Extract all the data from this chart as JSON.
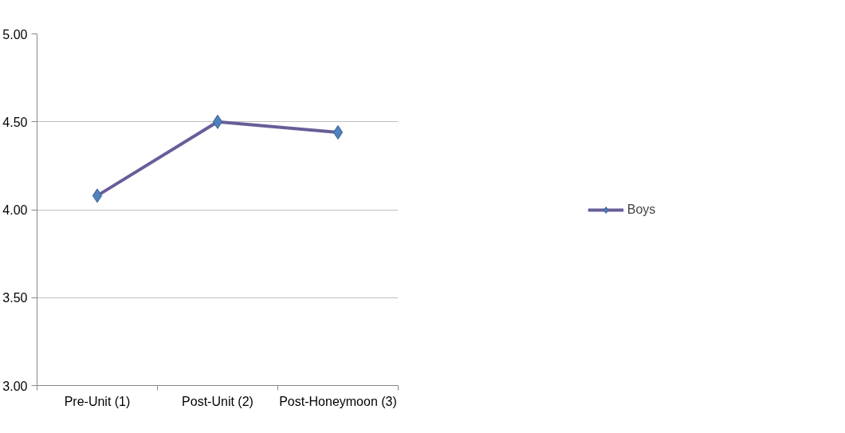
{
  "chart_data": {
    "type": "line",
    "categories": [
      "Pre-Unit (1)",
      "Post-Unit (2)",
      "Post-Honeymoon (3)"
    ],
    "series": [
      {
        "name": "Boys",
        "color": "#675e99",
        "colors": [
          "#4f81bd",
          "#4f81bd",
          "#4f81bd"
        ],
        "values": [
          4.08,
          4.5,
          4.44
        ]
      }
    ],
    "ylim": [
      3,
      5
    ],
    "yticks": [
      {
        "value": 3,
        "label": "3.00"
      },
      {
        "value": 3.5,
        "label": "3.50"
      },
      {
        "value": 4,
        "label": "4.00"
      },
      {
        "value": 4.5,
        "label": "4.50"
      },
      {
        "value": 5,
        "label": "5.00"
      }
    ],
    "grid": "y",
    "legend": "right",
    "marker": "diamond",
    "line_style": "solid"
  }
}
